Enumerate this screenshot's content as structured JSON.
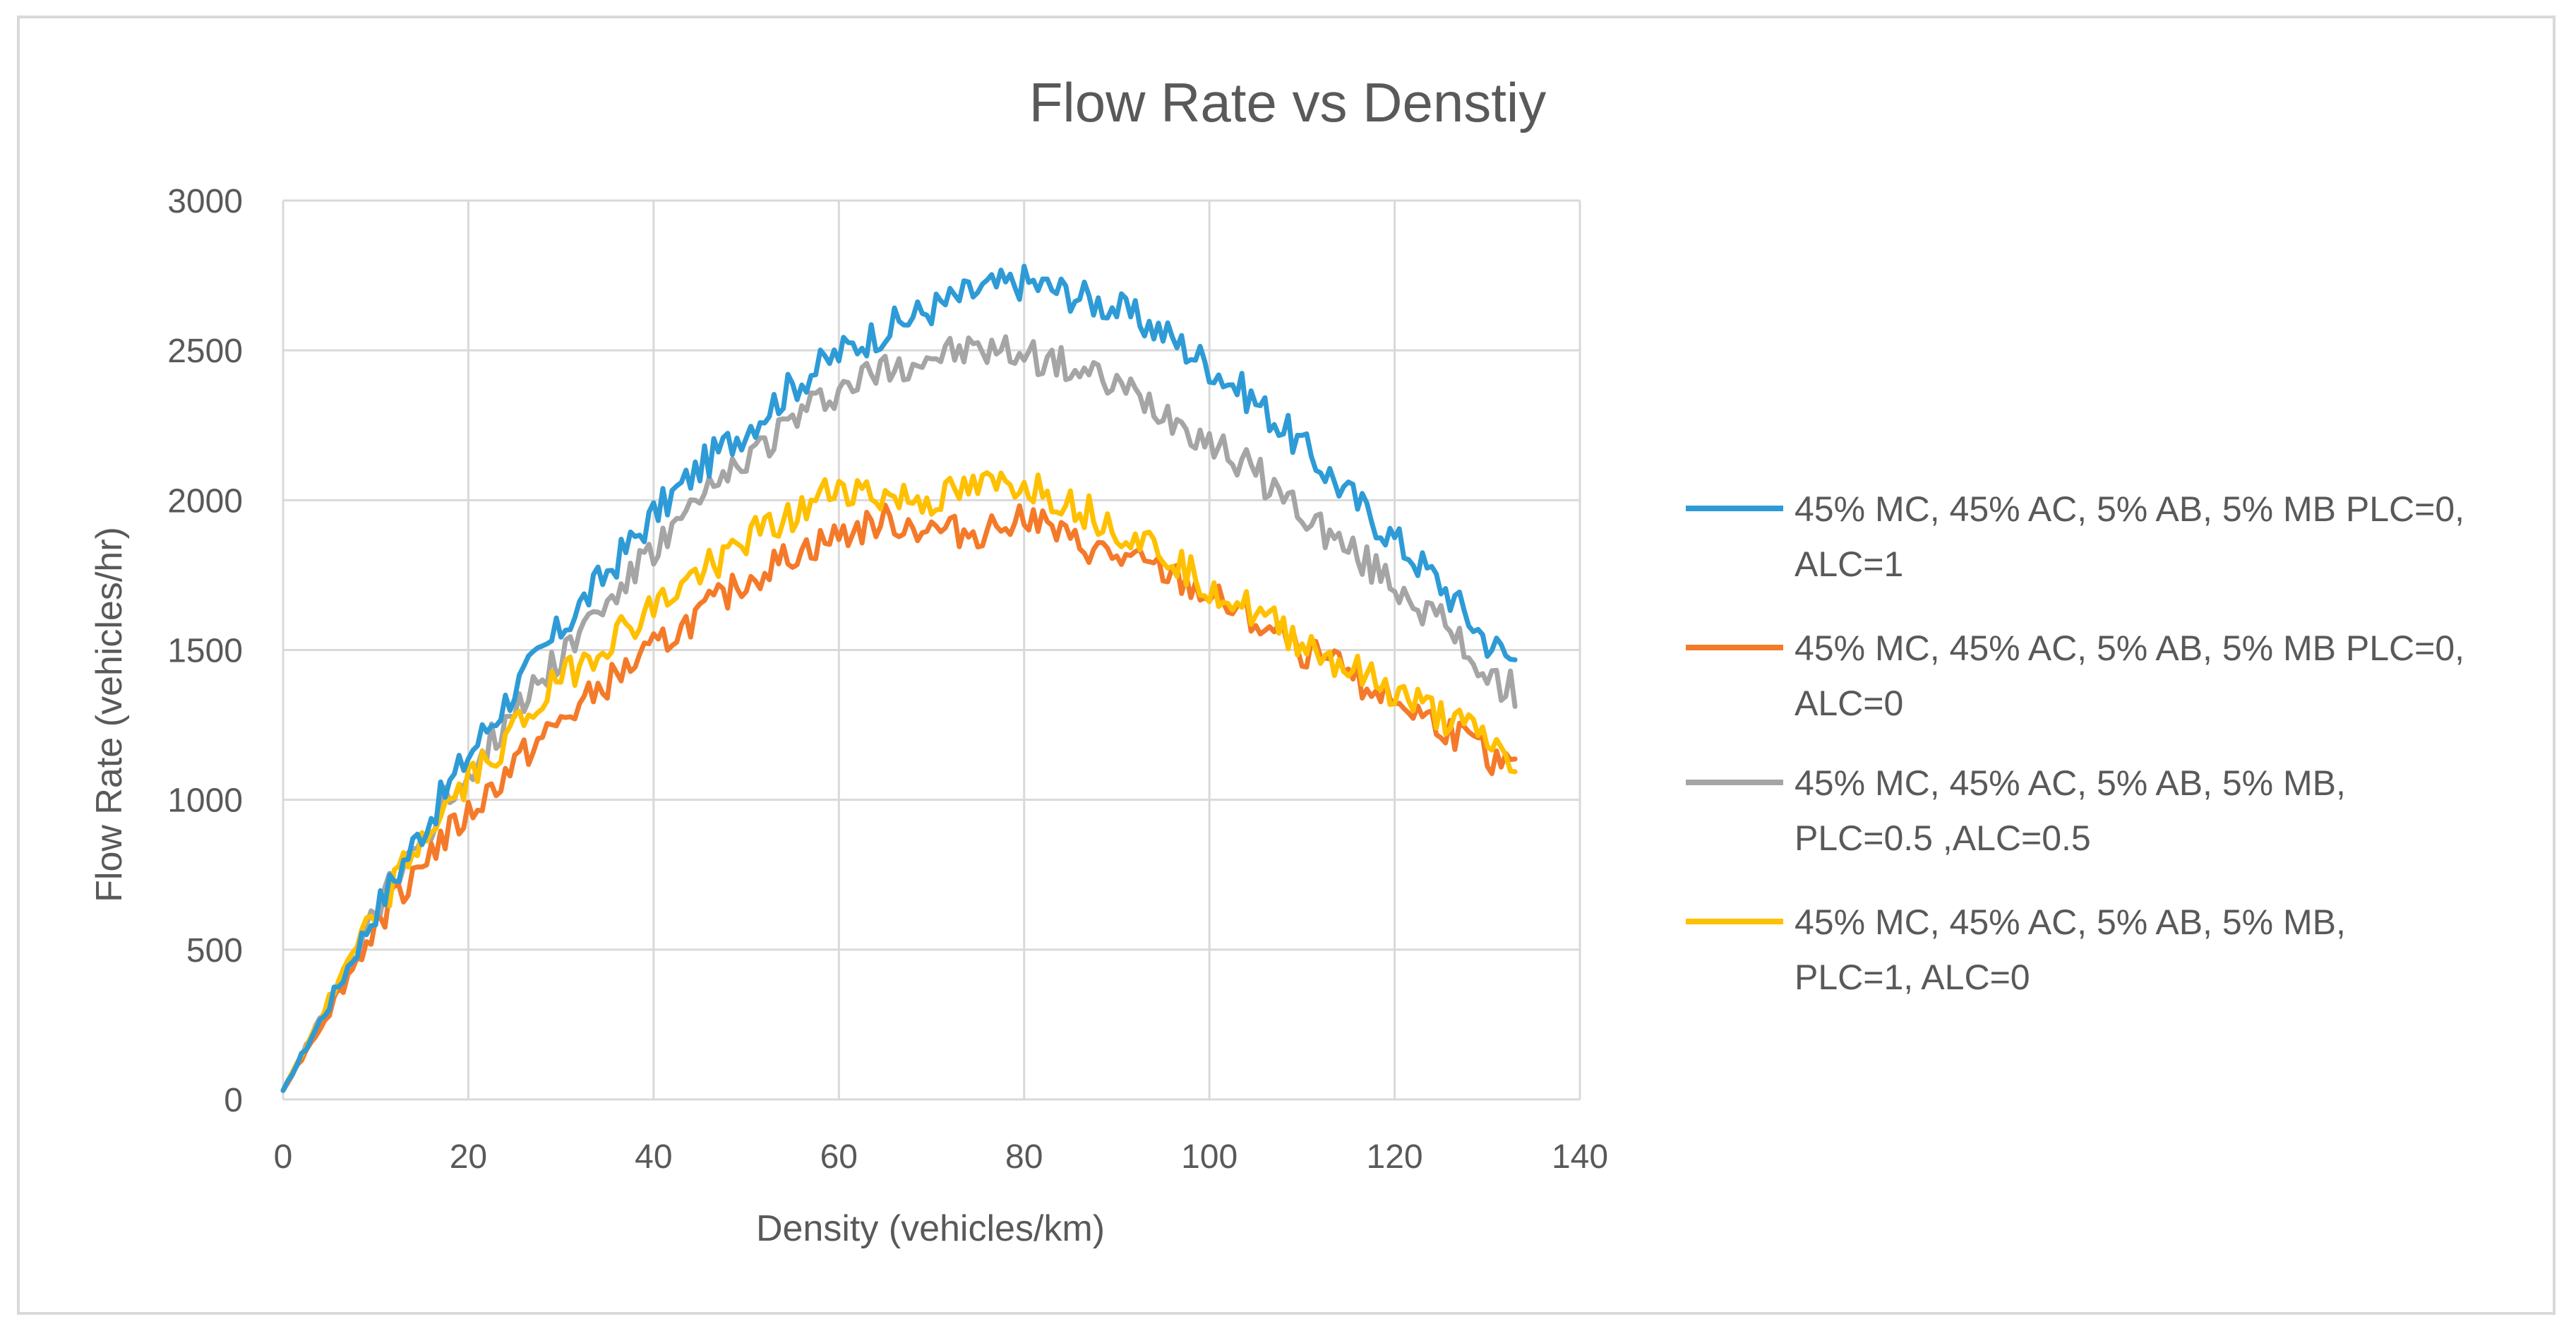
{
  "chart_data": {
    "type": "line",
    "title": "Flow Rate vs Denstiy",
    "xlabel": "Density (vehicles/km)",
    "ylabel": "Flow Rate  (vehicles/hr)",
    "xlim": [
      0,
      140
    ],
    "ylim": [
      0,
      3000
    ],
    "xticks": [
      0,
      20,
      40,
      60,
      80,
      100,
      120,
      140
    ],
    "yticks": [
      0,
      500,
      1000,
      1500,
      2000,
      2500,
      3000
    ],
    "grid": true,
    "legend_position": "right",
    "series": [
      {
        "name": "45% MC, 45% AC, 5% AB, 5% MB PLC=0, ALC=1",
        "legend_lines": [
          "45% MC, 45% AC, 5% AB, 5% MB PLC=0,",
          "ALC=1"
        ],
        "color": "#2e9bd6",
        "x": [
          0,
          5,
          10,
          15,
          20,
          25,
          30,
          35,
          40,
          45,
          50,
          55,
          60,
          65,
          70,
          75,
          80,
          85,
          90,
          95,
          100,
          105,
          110,
          115,
          120,
          125,
          130,
          133
        ],
        "y": [
          30,
          320,
          630,
          900,
          1150,
          1370,
          1570,
          1760,
          1950,
          2110,
          2240,
          2380,
          2490,
          2570,
          2640,
          2700,
          2730,
          2690,
          2640,
          2560,
          2450,
          2330,
          2180,
          2020,
          1870,
          1720,
          1530,
          1460
        ]
      },
      {
        "name": "45% MC, 45% AC, 5% AB, 5% MB PLC=0, ALC=0",
        "legend_lines": [
          "45% MC, 45% AC, 5% AB, 5% MB PLC=0,",
          "ALC=0"
        ],
        "color": "#f47a2a",
        "x": [
          0,
          5,
          10,
          15,
          20,
          25,
          30,
          35,
          40,
          45,
          50,
          55,
          60,
          65,
          70,
          75,
          80,
          85,
          90,
          95,
          100,
          105,
          110,
          115,
          120,
          125,
          130,
          133
        ],
        "y": [
          30,
          300,
          580,
          800,
          950,
          1120,
          1260,
          1390,
          1500,
          1620,
          1730,
          1820,
          1880,
          1930,
          1900,
          1890,
          1960,
          1860,
          1810,
          1760,
          1680,
          1590,
          1500,
          1420,
          1330,
          1250,
          1150,
          1100
        ]
      },
      {
        "name": "45% MC, 45% AC, 5% AB, 5% MB, PLC=0.5 ,ALC=0.5",
        "legend_lines": [
          "45% MC, 45% AC, 5% AB, 5% MB,",
          "PLC=0.5 ,ALC=0.5"
        ],
        "color": "#a5a5a5",
        "x": [
          0,
          5,
          10,
          15,
          20,
          25,
          30,
          35,
          40,
          45,
          50,
          55,
          60,
          65,
          70,
          75,
          80,
          85,
          90,
          95,
          100,
          105,
          110,
          115,
          120,
          125,
          130,
          133
        ],
        "y": [
          30,
          320,
          620,
          880,
          1100,
          1300,
          1490,
          1660,
          1830,
          1990,
          2140,
          2270,
          2370,
          2440,
          2480,
          2500,
          2490,
          2440,
          2380,
          2300,
          2200,
          2090,
          1960,
          1830,
          1720,
          1590,
          1420,
          1360
        ]
      },
      {
        "name": "45% MC, 45% AC, 5% AB, 5% MB, PLC=1, ALC=0",
        "legend_lines": [
          "45% MC, 45% AC, 5% AB, 5% MB,",
          "PLC=1, ALC=0"
        ],
        "color": "#ffc000",
        "x": [
          0,
          5,
          10,
          15,
          20,
          25,
          30,
          35,
          40,
          45,
          50,
          55,
          60,
          65,
          70,
          75,
          80,
          85,
          90,
          95,
          100,
          105,
          110,
          115,
          120,
          125,
          130,
          133
        ],
        "y": [
          30,
          330,
          620,
          870,
          1060,
          1240,
          1400,
          1530,
          1640,
          1760,
          1870,
          1940,
          2050,
          2010,
          2000,
          2040,
          2060,
          1990,
          1910,
          1830,
          1720,
          1620,
          1530,
          1440,
          1360,
          1280,
          1200,
          1110
        ]
      }
    ]
  }
}
